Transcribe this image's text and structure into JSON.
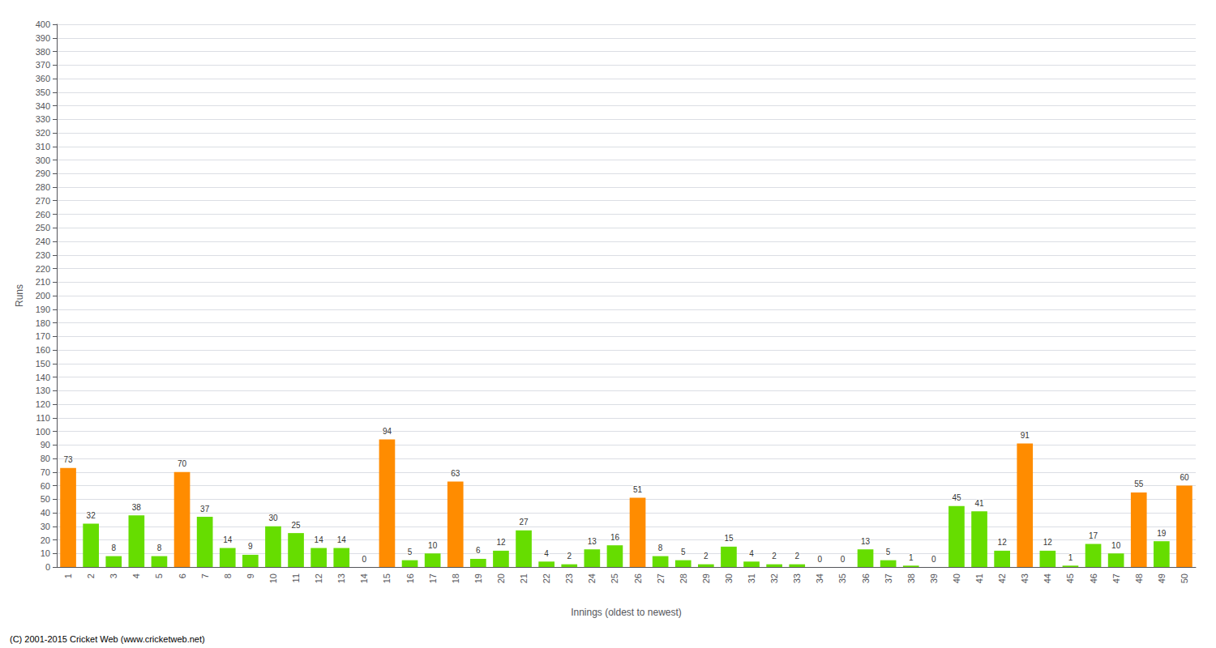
{
  "chart_data": {
    "type": "bar",
    "categories": [
      "1",
      "2",
      "3",
      "4",
      "5",
      "6",
      "7",
      "8",
      "9",
      "10",
      "11",
      "12",
      "13",
      "14",
      "15",
      "16",
      "17",
      "18",
      "19",
      "20",
      "21",
      "22",
      "23",
      "24",
      "25",
      "26",
      "27",
      "28",
      "29",
      "30",
      "31",
      "32",
      "33",
      "34",
      "35",
      "36",
      "37",
      "38",
      "39",
      "40",
      "41",
      "42",
      "43",
      "44",
      "45",
      "46",
      "47",
      "48",
      "49",
      "50"
    ],
    "values": [
      73,
      32,
      8,
      38,
      8,
      70,
      37,
      14,
      9,
      30,
      25,
      14,
      14,
      0,
      94,
      5,
      10,
      63,
      6,
      12,
      27,
      4,
      2,
      13,
      16,
      51,
      8,
      5,
      2,
      15,
      4,
      2,
      2,
      0,
      0,
      13,
      5,
      1,
      0,
      45,
      41,
      12,
      91,
      12,
      1,
      17,
      10,
      55,
      19,
      60
    ],
    "colors": [
      "#FF8C00",
      "#66DD00",
      "#66DD00",
      "#66DD00",
      "#66DD00",
      "#FF8C00",
      "#66DD00",
      "#66DD00",
      "#66DD00",
      "#66DD00",
      "#66DD00",
      "#66DD00",
      "#66DD00",
      "#66DD00",
      "#FF8C00",
      "#66DD00",
      "#66DD00",
      "#FF8C00",
      "#66DD00",
      "#66DD00",
      "#66DD00",
      "#66DD00",
      "#66DD00",
      "#66DD00",
      "#66DD00",
      "#FF8C00",
      "#66DD00",
      "#66DD00",
      "#66DD00",
      "#66DD00",
      "#66DD00",
      "#66DD00",
      "#66DD00",
      "#66DD00",
      "#66DD00",
      "#66DD00",
      "#66DD00",
      "#66DD00",
      "#66DD00",
      "#66DD00",
      "#66DD00",
      "#66DD00",
      "#FF8C00",
      "#66DD00",
      "#66DD00",
      "#66DD00",
      "#66DD00",
      "#FF8C00",
      "#66DD00",
      "#FF8C00"
    ],
    "xlabel": "Innings (oldest to newest)",
    "ylabel": "Runs",
    "ylim": [
      0,
      400
    ],
    "yticks": [
      0,
      10,
      20,
      30,
      40,
      50,
      60,
      70,
      80,
      90,
      100,
      110,
      120,
      130,
      140,
      150,
      160,
      170,
      180,
      190,
      200,
      210,
      220,
      230,
      240,
      250,
      260,
      270,
      280,
      290,
      300,
      310,
      320,
      330,
      340,
      350,
      360,
      370,
      380,
      390,
      400
    ],
    "grid": true,
    "data_labels": true,
    "annotations": [
      "(C) 2001-2015 Cricket Web (www.cricketweb.net)"
    ]
  }
}
